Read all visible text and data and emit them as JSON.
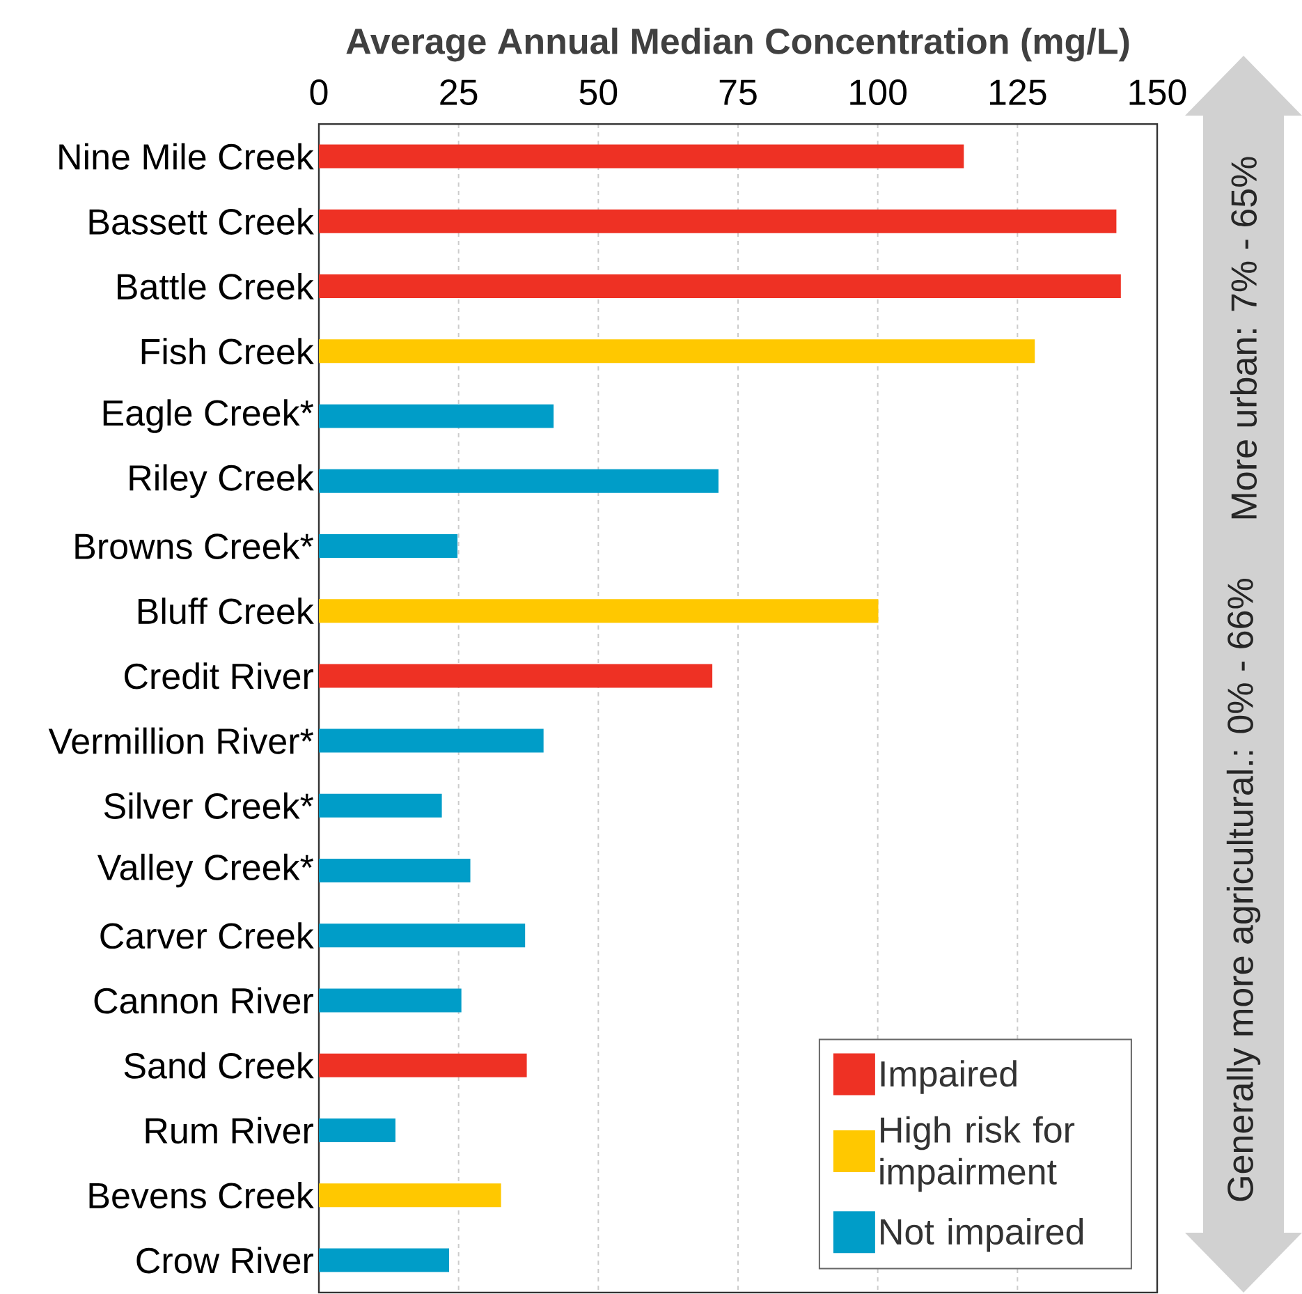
{
  "chart_data": {
    "type": "bar",
    "orientation": "horizontal",
    "xlabel": "Average Annual Median Concentration (mg/L)",
    "categories": [
      "Nine Mile Creek",
      "Bassett Creek",
      "Battle Creek",
      "Fish Creek",
      "Eagle Creek*",
      "Riley Creek",
      "Browns Creek*",
      "Bluff Creek",
      "Credit River",
      "Vermillion River*",
      "Silver Creek*",
      "Valley Creek*",
      "Carver Creek",
      "Cannon River",
      "Sand Creek",
      "Rum River",
      "Bevens Creek",
      "Crow River"
    ],
    "series": [
      {
        "name": "Impaired",
        "color": "#ee3124",
        "values": [
          115.4,
          142.7,
          143.5,
          null,
          null,
          null,
          null,
          null,
          70.4,
          null,
          null,
          null,
          null,
          null,
          37.2,
          null,
          null,
          null
        ]
      },
      {
        "name": "High risk for impairment",
        "color": "#ffc800",
        "values": [
          null,
          null,
          null,
          128.1,
          null,
          null,
          null,
          100.1,
          null,
          null,
          null,
          null,
          null,
          null,
          null,
          null,
          32.6,
          null
        ]
      },
      {
        "name": "Not impaired",
        "color": "#009dc8",
        "values": [
          null,
          null,
          null,
          null,
          42.0,
          71.5,
          24.8,
          null,
          null,
          40.2,
          22.0,
          27.1,
          36.9,
          25.5,
          null,
          13.7,
          null,
          23.3
        ]
      }
    ],
    "xlim": [
      0,
      150
    ],
    "xticks": [
      0,
      25,
      50,
      75,
      100,
      125,
      150
    ],
    "grid": "x",
    "legend": "bottom right",
    "annotations": [
      "Generally more agricultural.: 0% - 66%",
      "More urban: 7% - 65%"
    ]
  }
}
